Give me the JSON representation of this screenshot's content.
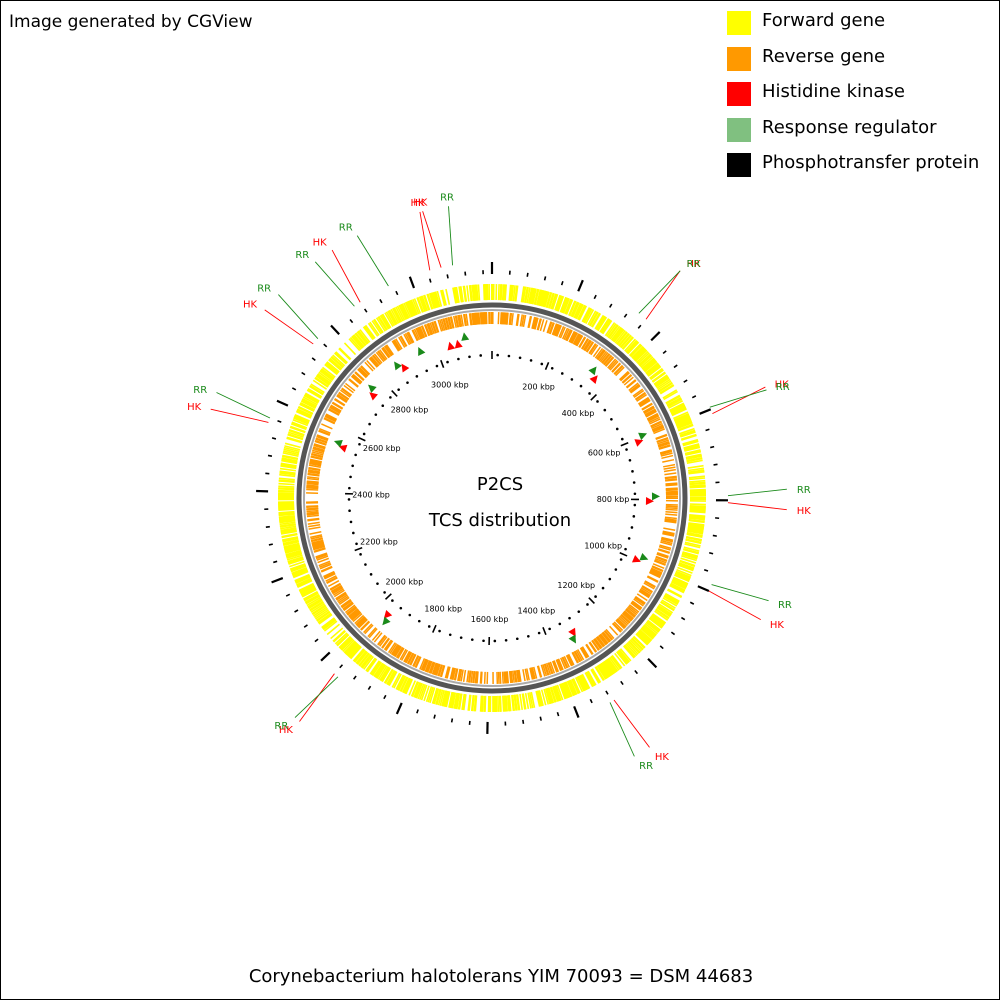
{
  "credit": "Image generated by CGView",
  "legend": [
    {
      "label": "Forward gene",
      "color": "#ffff00"
    },
    {
      "label": "Reverse gene",
      "color": "#ff9900"
    },
    {
      "label": "Histidine kinase",
      "color": "#ff0000"
    },
    {
      "label": "Response regulator",
      "color": "#80c080"
    },
    {
      "label": "Phosphotransfer protein",
      "color": "#000000"
    }
  ],
  "map": {
    "title": "P2CS",
    "subtitle": "TCS distribution",
    "genome_length_kbp": 3180,
    "tick_labels": [
      "200 kbp",
      "400 kbp",
      "600 kbp",
      "800 kbp",
      "1000 kbp",
      "1200 kbp",
      "1400 kbp",
      "1600 kbp",
      "1800 kbp",
      "2000 kbp",
      "2200 kbp",
      "2400 kbp",
      "2600 kbp",
      "2800 kbp",
      "3000 kbp"
    ],
    "tick_positions_kbp": [
      200,
      400,
      600,
      800,
      1000,
      1200,
      1400,
      1600,
      1800,
      2000,
      2200,
      2400,
      2600,
      2800,
      3000
    ],
    "feature_labels": [
      {
        "text": "HK",
        "type": "histidine-kinase",
        "position_kbp": 360
      },
      {
        "text": "RR",
        "type": "response-regulator",
        "position_kbp": 340
      },
      {
        "text": "HK",
        "type": "histidine-kinase",
        "position_kbp": 610
      },
      {
        "text": "RR",
        "type": "response-regulator",
        "position_kbp": 595
      },
      {
        "text": "RR",
        "type": "response-regulator",
        "position_kbp": 790
      },
      {
        "text": "HK",
        "type": "histidine-kinase",
        "position_kbp": 805
      },
      {
        "text": "RR",
        "type": "response-regulator",
        "position_kbp": 985
      },
      {
        "text": "HK",
        "type": "histidine-kinase",
        "position_kbp": 1000
      },
      {
        "text": "HK",
        "type": "histidine-kinase",
        "position_kbp": 1315
      },
      {
        "text": "RR",
        "type": "response-regulator",
        "position_kbp": 1325
      },
      {
        "text": "HK",
        "type": "histidine-kinase",
        "position_kbp": 1960
      },
      {
        "text": "RR",
        "type": "response-regulator",
        "position_kbp": 1950
      },
      {
        "text": "HK",
        "type": "histidine-kinase",
        "position_kbp": 2550
      },
      {
        "text": "RR",
        "type": "response-regulator",
        "position_kbp": 2560
      },
      {
        "text": "HK",
        "type": "histidine-kinase",
        "position_kbp": 2745
      },
      {
        "text": "RR",
        "type": "response-regulator",
        "position_kbp": 2760
      },
      {
        "text": "RR",
        "type": "response-regulator",
        "position_kbp": 2865
      },
      {
        "text": "HK",
        "type": "histidine-kinase",
        "position_kbp": 2880
      },
      {
        "text": "RR",
        "type": "response-regulator",
        "position_kbp": 2950
      },
      {
        "text": "HK",
        "type": "histidine-kinase",
        "position_kbp": 3045
      },
      {
        "text": "HK",
        "type": "histidine-kinase",
        "position_kbp": 3070
      },
      {
        "text": "RR",
        "type": "response-regulator",
        "position_kbp": 3095
      }
    ]
  },
  "caption": "Corynebacterium halotolerans YIM 70093 = DSM 44683"
}
